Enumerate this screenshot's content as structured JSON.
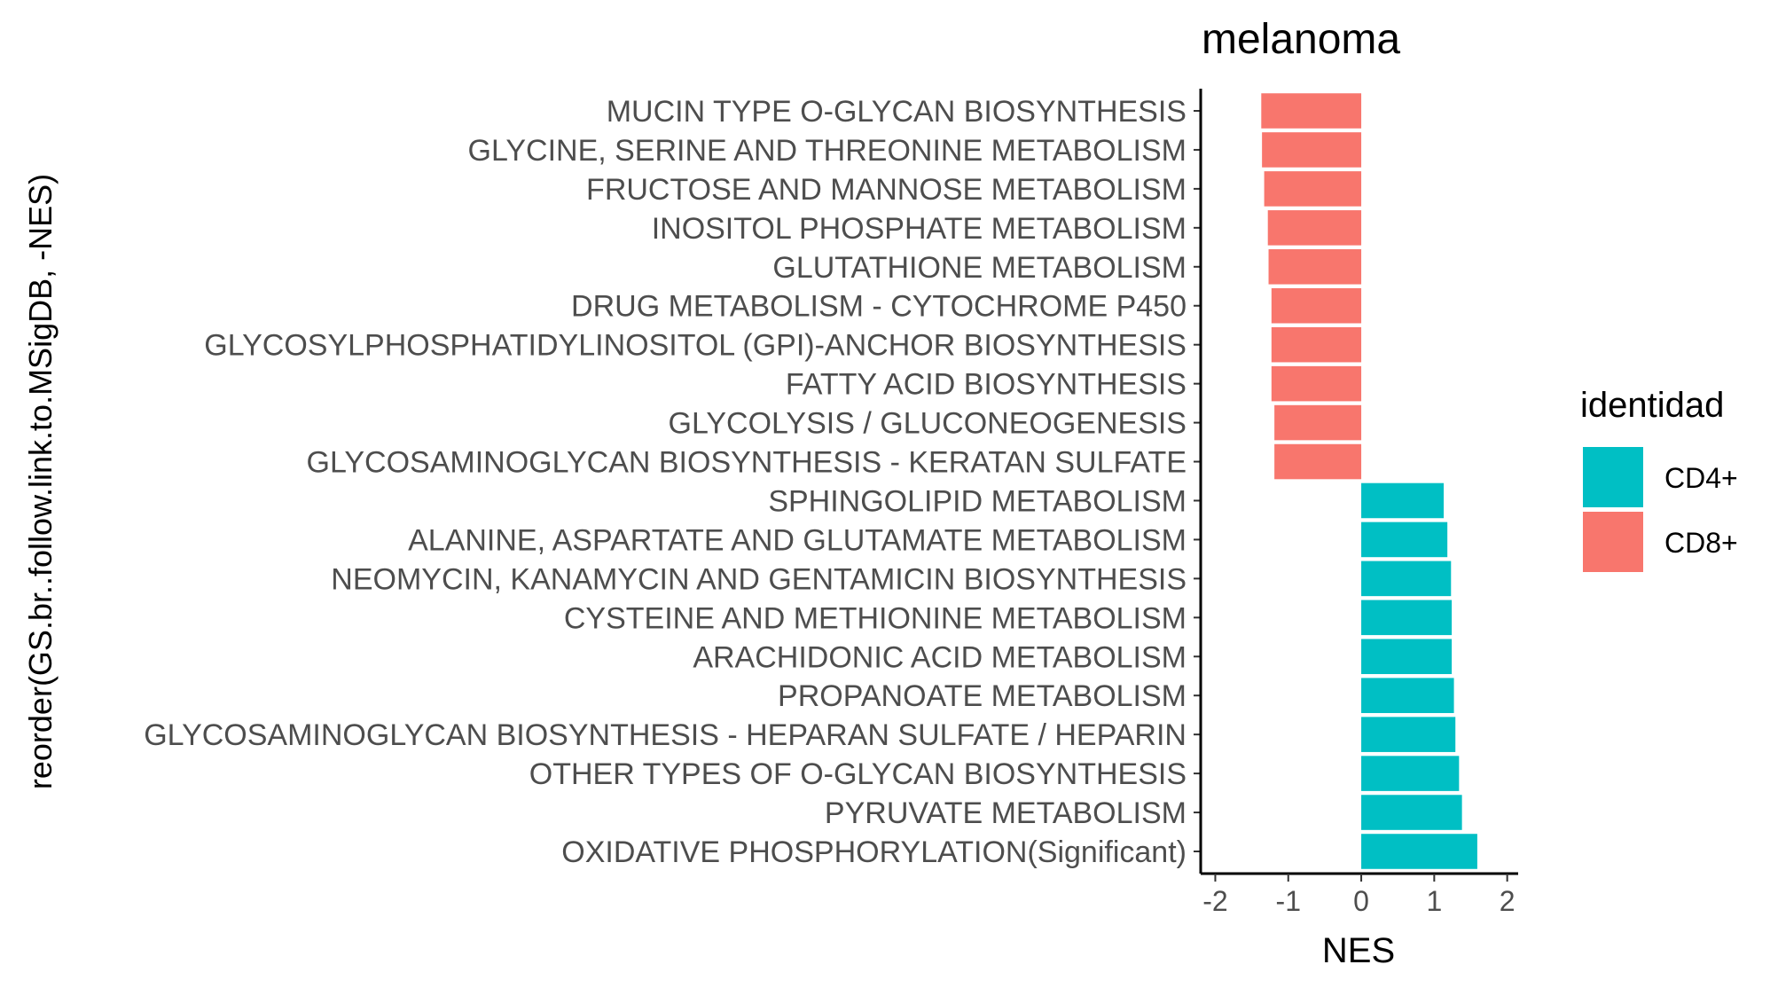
{
  "chart_data": {
    "type": "bar",
    "orientation": "horizontal",
    "title": "melanoma",
    "xlabel": "NES",
    "ylabel": "reorder(GS.br..follow.link.to.MSigDB, -NES)",
    "xlim": [
      -2.2,
      2.15
    ],
    "xticks": [
      -2,
      -1,
      0,
      1,
      2
    ],
    "xtick_labels": [
      "-2",
      "-1",
      "0",
      "1",
      "2"
    ],
    "grid": false,
    "legend": {
      "title": "identidad",
      "position": "right",
      "entries": [
        {
          "label": "CD4+",
          "color": "#00BFC4"
        },
        {
          "label": "CD8+",
          "color": "#F8766D"
        }
      ]
    },
    "colors": {
      "CD4+": "#00BFC4",
      "CD8+": "#F8766D"
    },
    "categories": [
      "MUCIN TYPE O-GLYCAN BIOSYNTHESIS",
      "GLYCINE, SERINE AND THREONINE METABOLISM",
      "FRUCTOSE AND MANNOSE METABOLISM",
      "INOSITOL PHOSPHATE METABOLISM",
      "GLUTATHIONE METABOLISM",
      "DRUG METABOLISM - CYTOCHROME P450",
      "GLYCOSYLPHOSPHATIDYLINOSITOL (GPI)-ANCHOR BIOSYNTHESIS",
      "FATTY ACID BIOSYNTHESIS",
      "GLYCOLYSIS / GLUCONEOGENESIS",
      "GLYCOSAMINOGLYCAN BIOSYNTHESIS - KERATAN SULFATE",
      "SPHINGOLIPID METABOLISM",
      "ALANINE, ASPARTATE AND GLUTAMATE METABOLISM",
      "NEOMYCIN, KANAMYCIN AND GENTAMICIN BIOSYNTHESIS",
      "CYSTEINE AND METHIONINE METABOLISM",
      "ARACHIDONIC ACID METABOLISM",
      "PROPANOATE METABOLISM",
      "GLYCOSAMINOGLYCAN BIOSYNTHESIS - HEPARAN SULFATE / HEPARIN",
      "OTHER TYPES OF O-GLYCAN BIOSYNTHESIS",
      "PYRUVATE METABOLISM",
      "OXIDATIVE PHOSPHORYLATION(Significant)"
    ],
    "values": [
      -1.37,
      -1.36,
      -1.33,
      -1.28,
      -1.27,
      -1.23,
      -1.23,
      -1.23,
      -1.19,
      -1.19,
      1.13,
      1.18,
      1.23,
      1.24,
      1.24,
      1.27,
      1.29,
      1.34,
      1.38,
      1.59
    ],
    "groups": [
      "CD8+",
      "CD8+",
      "CD8+",
      "CD8+",
      "CD8+",
      "CD8+",
      "CD8+",
      "CD8+",
      "CD8+",
      "CD8+",
      "CD4+",
      "CD4+",
      "CD4+",
      "CD4+",
      "CD4+",
      "CD4+",
      "CD4+",
      "CD4+",
      "CD4+",
      "CD4+"
    ]
  }
}
